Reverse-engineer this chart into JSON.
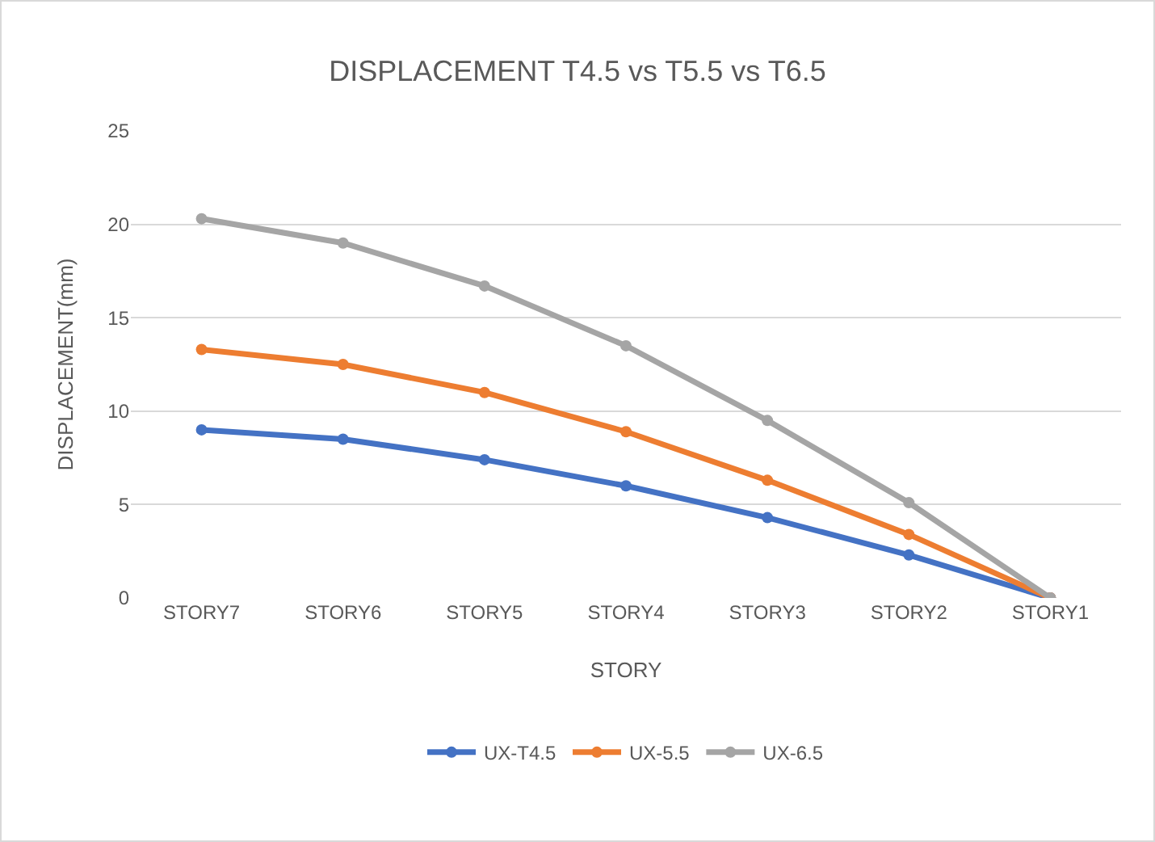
{
  "chart_data": {
    "type": "line",
    "title": "DISPLACEMENT T4.5 vs T5.5 vs T6.5",
    "xlabel": "STORY",
    "ylabel": "DISPLACEMENT(mm)",
    "categories": [
      "STORY7",
      "STORY6",
      "STORY5",
      "STORY4",
      "STORY3",
      "STORY2",
      "STORY1"
    ],
    "series": [
      {
        "name": "UX-T4.5",
        "color": "#4472c4",
        "values": [
          9,
          8.5,
          7.4,
          6,
          4.3,
          2.3,
          0
        ]
      },
      {
        "name": "UX-5.5",
        "color": "#ed7d31",
        "values": [
          13.3,
          12.5,
          11,
          8.9,
          6.3,
          3.4,
          0
        ]
      },
      {
        "name": "UX-6.5",
        "color": "#a5a5a5",
        "values": [
          20.3,
          19,
          16.7,
          13.5,
          9.5,
          5.1,
          0
        ]
      }
    ],
    "ylim": [
      0,
      25
    ],
    "yticks": [
      0,
      5,
      10,
      15,
      20,
      25
    ],
    "grid": "y",
    "legend": "bottom",
    "marker": "circle",
    "line_style": "solid"
  }
}
